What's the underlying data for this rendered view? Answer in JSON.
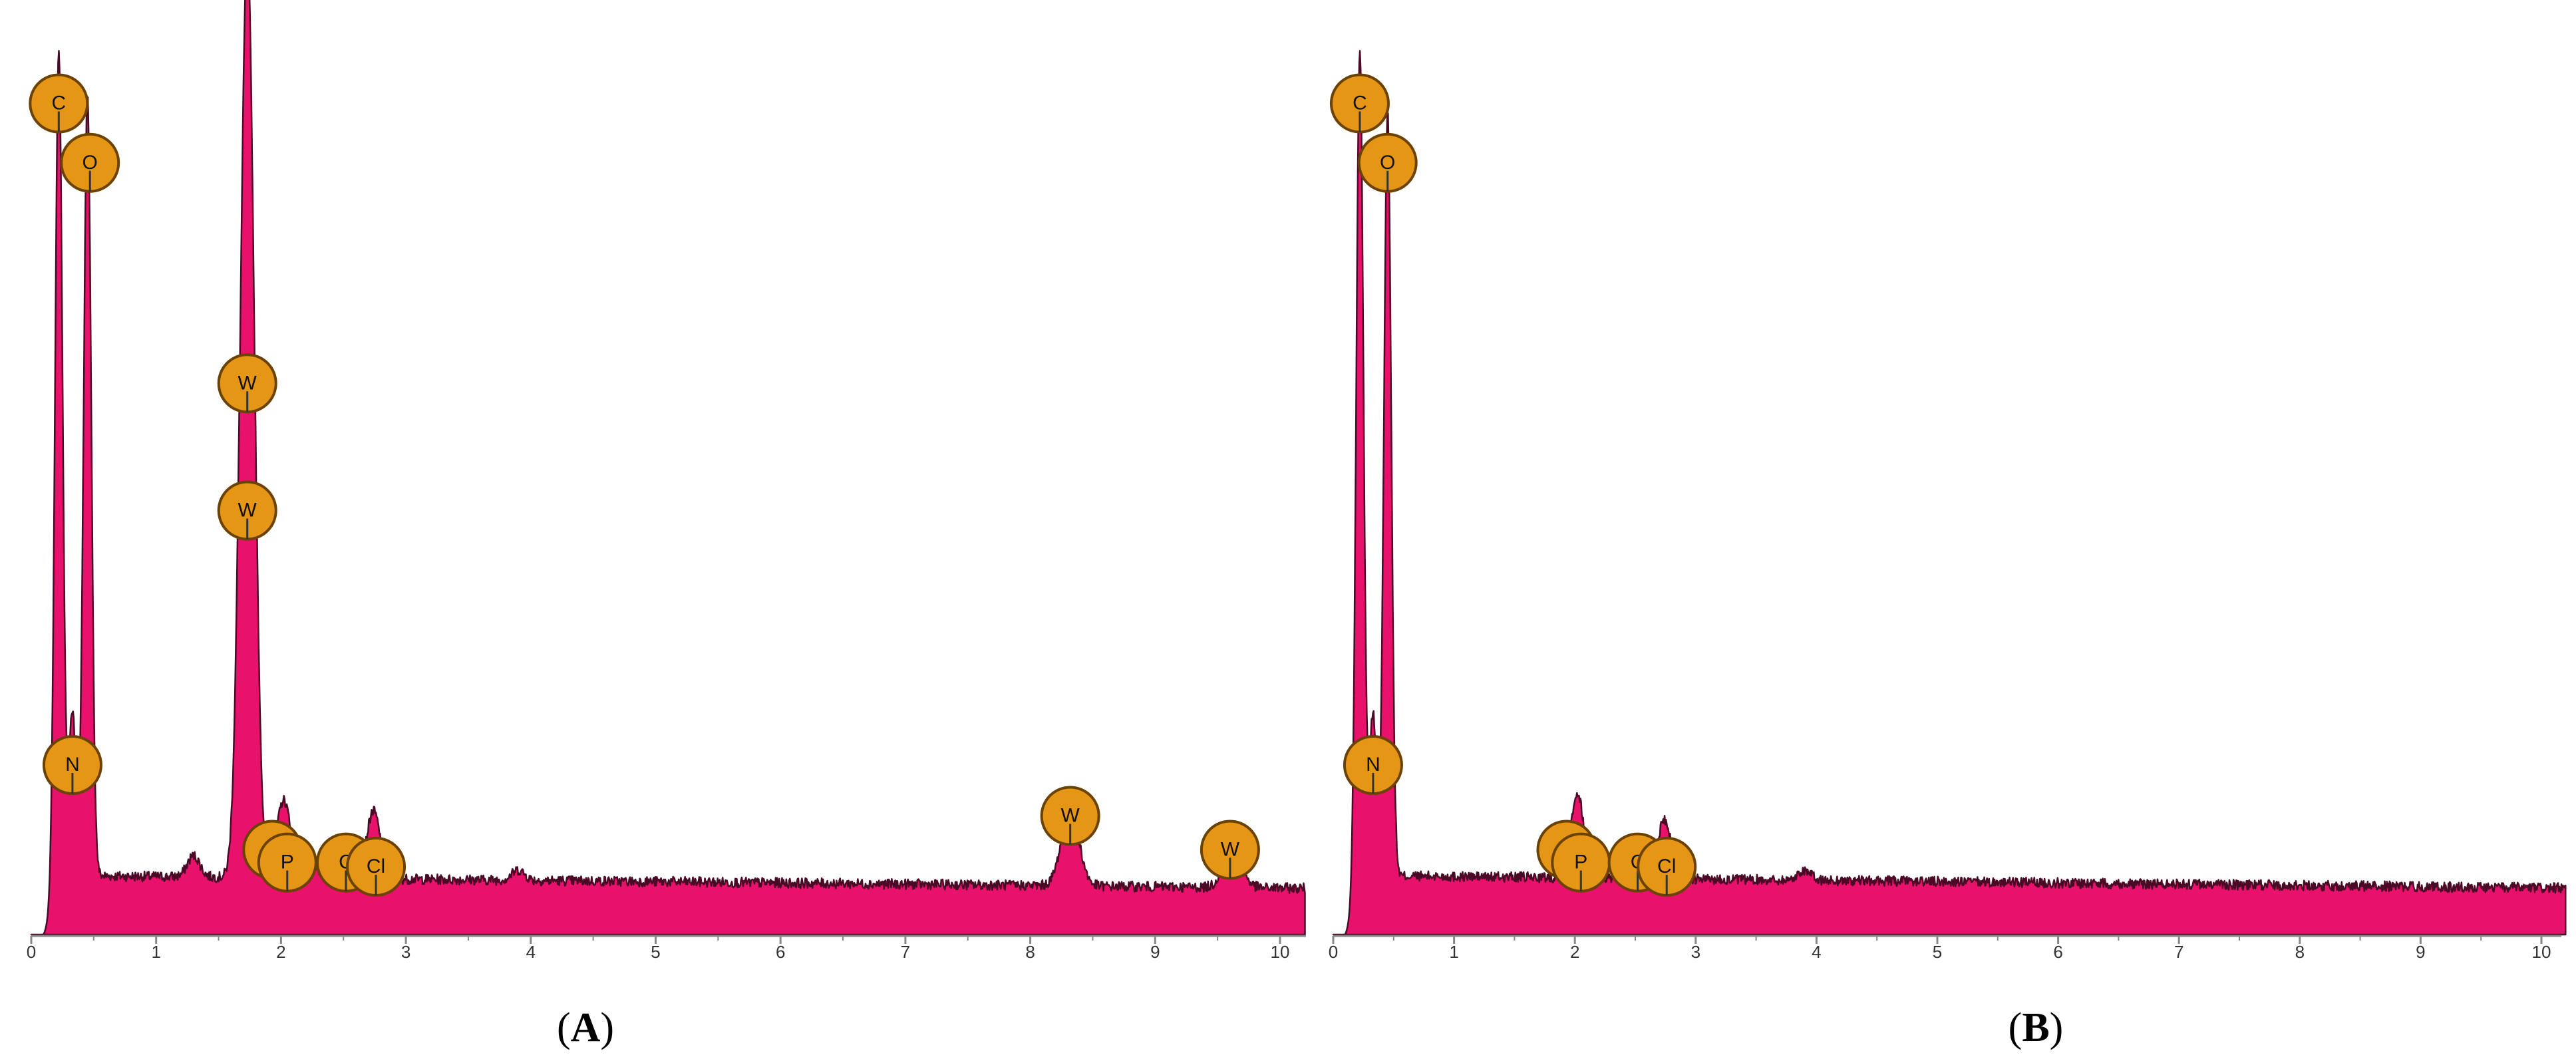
{
  "chart_data": [
    {
      "type": "area",
      "panel_label": "A",
      "xlabel": "",
      "ylabel": "",
      "xlim": [
        0,
        10.2
      ],
      "xticks": [
        0,
        1,
        2,
        3,
        4,
        5,
        6,
        7,
        8,
        9,
        10
      ],
      "series_color": "#e8116b",
      "peaks": [
        {
          "element": "C",
          "x": 0.22,
          "height": 1.0
        },
        {
          "element": "O",
          "x": 0.45,
          "height": 0.92
        },
        {
          "element": "N",
          "x": 0.33,
          "height": 0.19
        },
        {
          "element": "W",
          "x": 1.73,
          "height": 0.62
        },
        {
          "element": "W",
          "x": 1.73,
          "height": 0.47
        },
        {
          "element": "P",
          "x": 2.02,
          "height": 0.09
        },
        {
          "element": "Cl",
          "x": 2.74,
          "height": 0.08
        },
        {
          "element": "W",
          "x": 8.32,
          "height": 0.09
        },
        {
          "element": "W",
          "x": 9.62,
          "height": 0.05
        }
      ],
      "labels": [
        {
          "text": "C",
          "x": 0.22,
          "level": 0.98
        },
        {
          "text": "O",
          "x": 0.47,
          "level": 0.91
        },
        {
          "text": "W",
          "x": 1.73,
          "level": 0.65
        },
        {
          "text": "W",
          "x": 1.73,
          "level": 0.5
        },
        {
          "text": "N",
          "x": 0.33,
          "level": 0.2
        },
        {
          "text": "P",
          "x": 1.93,
          "level": 0.1
        },
        {
          "text": "P",
          "x": 2.05,
          "level": 0.085
        },
        {
          "text": "C",
          "x": 2.52,
          "level": 0.085
        },
        {
          "text": "Cl",
          "x": 2.76,
          "level": 0.08
        },
        {
          "text": "W",
          "x": 8.32,
          "level": 0.14
        },
        {
          "text": "W",
          "x": 9.6,
          "level": 0.1
        }
      ]
    },
    {
      "type": "area",
      "panel_label": "B",
      "xlabel": "",
      "ylabel": "",
      "xlim": [
        0,
        10.2
      ],
      "xticks": [
        0,
        1,
        2,
        3,
        4,
        5,
        6,
        7,
        8,
        9,
        10
      ],
      "series_color": "#e8116b",
      "peaks": [
        {
          "element": "C",
          "x": 0.22,
          "height": 1.0
        },
        {
          "element": "O",
          "x": 0.45,
          "height": 0.9
        },
        {
          "element": "N",
          "x": 0.33,
          "height": 0.19
        },
        {
          "element": "P",
          "x": 2.02,
          "height": 0.1
        },
        {
          "element": "Cl",
          "x": 2.74,
          "height": 0.07
        }
      ],
      "labels": [
        {
          "text": "C",
          "x": 0.22,
          "level": 0.98
        },
        {
          "text": "O",
          "x": 0.45,
          "level": 0.91
        },
        {
          "text": "N",
          "x": 0.33,
          "level": 0.2
        },
        {
          "text": "P",
          "x": 1.93,
          "level": 0.1
        },
        {
          "text": "P",
          "x": 2.05,
          "level": 0.085
        },
        {
          "text": "C",
          "x": 2.52,
          "level": 0.085
        },
        {
          "text": "Cl",
          "x": 2.76,
          "level": 0.08
        }
      ]
    }
  ],
  "colors": {
    "fill": "#e8116b",
    "edge": "#4a0a26",
    "marker_fill": "#e59615",
    "marker_stroke": "#6b4200",
    "axis": "#888888",
    "tick_text": "#333333"
  }
}
